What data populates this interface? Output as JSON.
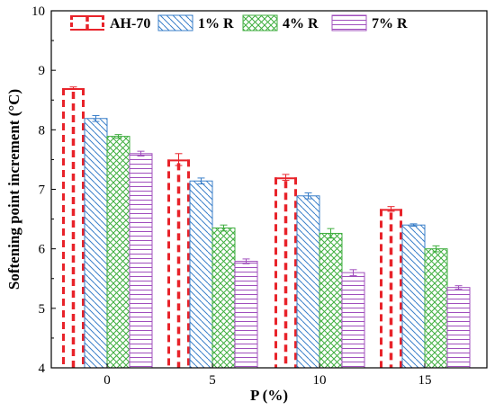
{
  "chart_data": {
    "type": "bar",
    "xlabel": "P (%)",
    "ylabel": "Softening point increment (°C)",
    "categories": [
      "0",
      "5",
      "10",
      "15"
    ],
    "ylim": [
      4,
      10
    ],
    "yticks": [
      "4",
      "5",
      "6",
      "7",
      "8",
      "9",
      "10"
    ],
    "legend_position": "top-left, horizontal",
    "grid": false,
    "series": [
      {
        "name": "AH-70",
        "values": [
          8.7,
          7.5,
          7.2,
          6.67
        ],
        "errors": [
          0.02,
          0.1,
          0.05,
          0.04
        ],
        "color": "#e8232a",
        "pattern": "dashed-vertical"
      },
      {
        "name": "1% R",
        "values": [
          8.19,
          7.14,
          6.89,
          6.4
        ],
        "errors": [
          0.05,
          0.05,
          0.05,
          0.02
        ],
        "color": "#3a7fc9",
        "pattern": "backslash-hatch"
      },
      {
        "name": "4% R",
        "values": [
          7.89,
          6.35,
          6.26,
          6.0
        ],
        "errors": [
          0.03,
          0.05,
          0.08,
          0.05
        ],
        "color": "#3fae3f",
        "pattern": "crosshatch"
      },
      {
        "name": "7% R",
        "values": [
          7.6,
          5.79,
          5.6,
          5.35
        ],
        "errors": [
          0.04,
          0.04,
          0.05,
          0.03
        ],
        "color": "#a04fbd",
        "pattern": "horizontal-lines"
      }
    ]
  }
}
